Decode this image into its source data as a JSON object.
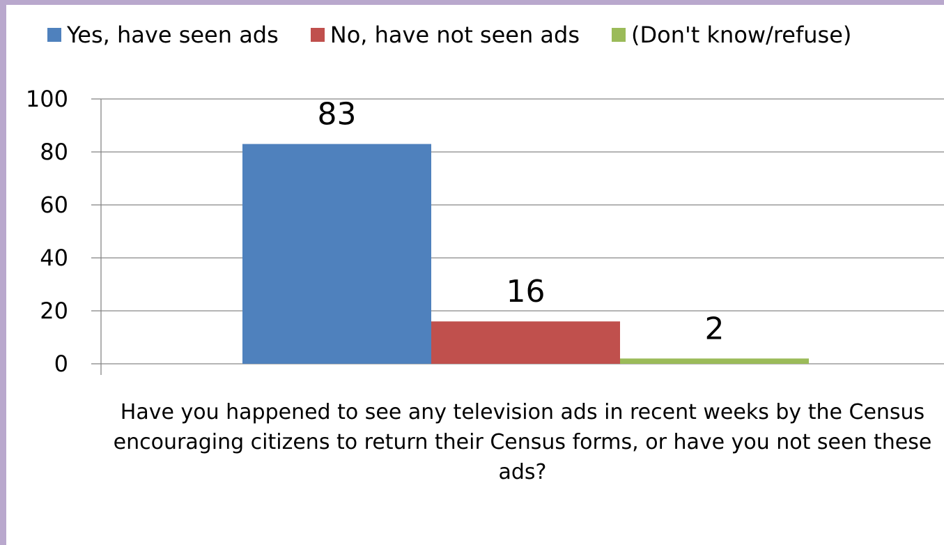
{
  "chart_data": {
    "type": "bar",
    "categories": [
      "Have you happened to see any television ads in recent weeks by the Census encouraging citizens to return their Census forms, or have you not seen these ads?"
    ],
    "series": [
      {
        "name": "Yes, have seen ads",
        "values": [
          83
        ],
        "color": "#4f81bd"
      },
      {
        "name": "No, have not seen ads",
        "values": [
          16
        ],
        "color": "#c0504d"
      },
      {
        "name": "(Don't know/refuse)",
        "values": [
          2
        ],
        "color": "#9bbb59"
      }
    ],
    "data_labels": [
      "83",
      "16",
      "2"
    ],
    "ylim": [
      0,
      100
    ],
    "yticks": [
      0,
      20,
      40,
      60,
      80,
      100
    ],
    "grid": true,
    "legend_position": "top",
    "title": "",
    "xlabel": "",
    "ylabel": ""
  },
  "colors": {
    "frame": "#b9a8cd",
    "grid": "#868686"
  }
}
